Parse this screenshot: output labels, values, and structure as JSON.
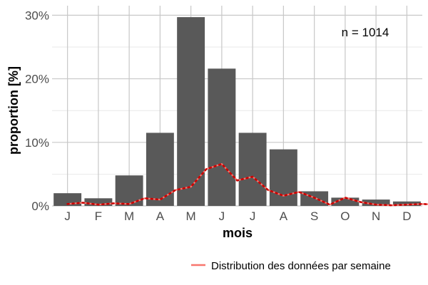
{
  "chart_data": {
    "type": "bar",
    "title": "",
    "xlabel": "mois",
    "ylabel": "proportion [%]",
    "categories": [
      "J",
      "F",
      "M",
      "A",
      "M",
      "J",
      "J",
      "A",
      "S",
      "O",
      "N",
      "D"
    ],
    "values": [
      2.0,
      1.2,
      4.8,
      11.5,
      29.7,
      21.6,
      11.5,
      8.9,
      2.3,
      1.3,
      1.0,
      0.7
    ],
    "ylim": [
      0,
      31.5
    ],
    "yticks": [
      0,
      10,
      20,
      30
    ],
    "ytick_labels": [
      "0%",
      "10%",
      "20%",
      "30%"
    ],
    "grid": true,
    "annotation": "n = 1014",
    "overlay_line": {
      "name": "Distribution des données par semaine",
      "type": "line",
      "x": [
        0.5,
        1.0,
        1.5,
        2.0,
        2.5,
        3.0,
        3.5,
        4.0,
        4.5,
        5.0,
        5.5,
        6.0,
        6.5,
        7.0,
        7.5,
        8.0,
        8.5,
        9.0,
        9.5,
        10.0,
        10.5,
        11.0,
        11.5,
        12.0,
        12.5
      ],
      "values": [
        0.3,
        0.5,
        0.2,
        0.4,
        0.3,
        1.2,
        1.0,
        2.5,
        3.0,
        5.8,
        6.6,
        4.0,
        4.6,
        2.5,
        1.6,
        2.2,
        1.3,
        0.2,
        1.3,
        0.6,
        0.2,
        0.1,
        0.2,
        0.3,
        0.2
      ]
    },
    "legend": {
      "position": "bottom-right",
      "label": "Distribution des données par semaine"
    },
    "colors": {
      "bar": "#595959",
      "line": "#F8766D",
      "dot": "#CC0000",
      "grid": "#c8c8c8"
    }
  }
}
